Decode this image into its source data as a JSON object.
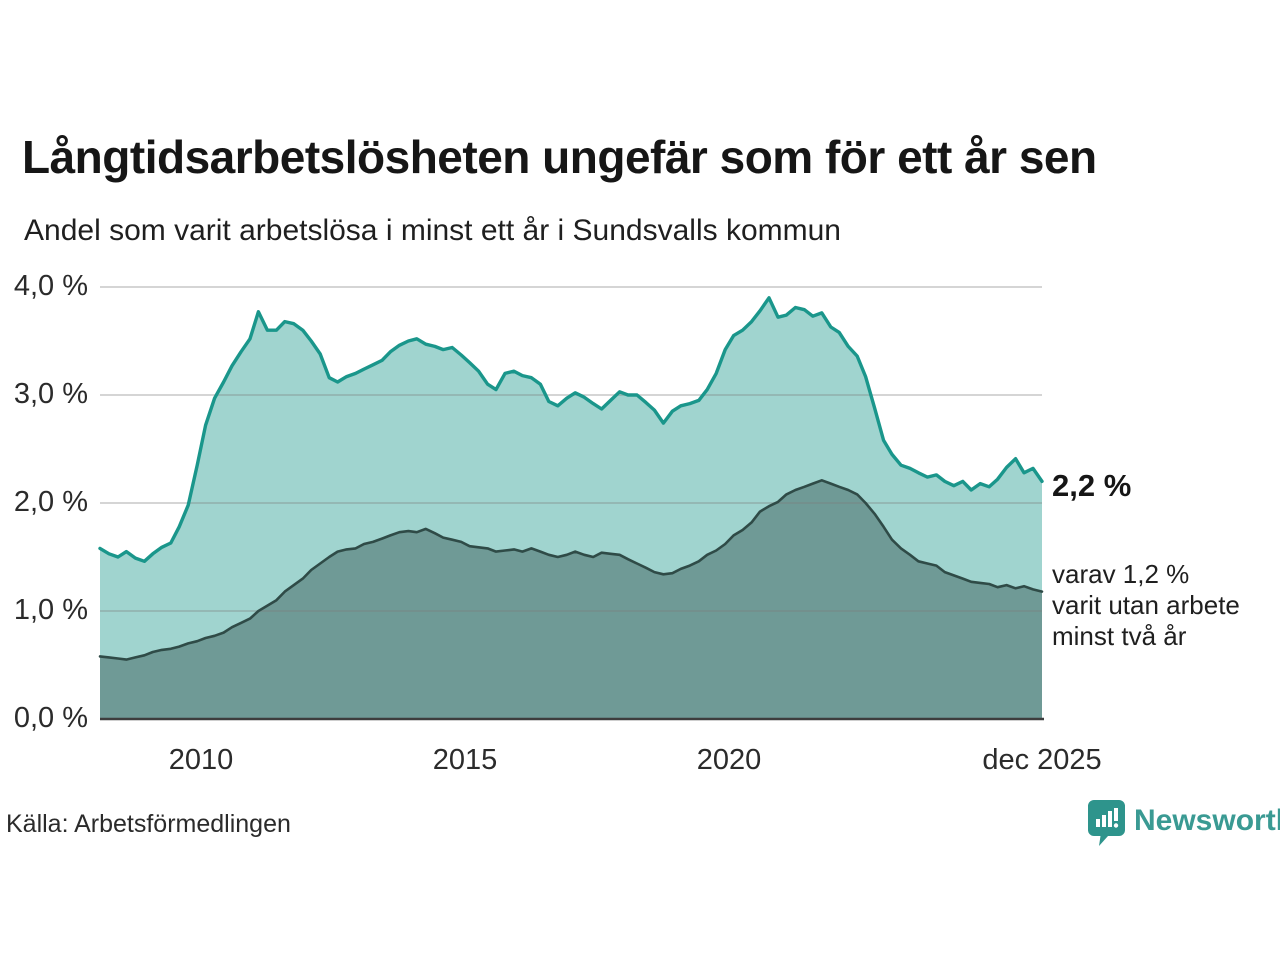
{
  "header": {
    "title": "Långtidsarbetslösheten ungefär som för ett år sen",
    "subtitle": "Andel som varit arbetslösa i minst ett år i Sundsvalls kommun"
  },
  "annotations": {
    "latest_total": "2,2 %",
    "secondary_lines": [
      "varav 1,2 %",
      "varit utan arbete",
      "minst två år"
    ]
  },
  "footer": {
    "source": "Källa: Arbetsförmedlingen",
    "brand": "Newsworthy"
  },
  "colors": {
    "line_total": "#1a968b",
    "fill_total": "#a0d4cf",
    "line_two_years": "#2f4b47",
    "fill_two_years": "#6f9a96",
    "gridline": "#d9d9d9",
    "axis_baseline": "#3d3d3d",
    "brand_teal": "#3a9a93",
    "icon_teal": "#2e948c"
  },
  "chart_data": {
    "type": "area",
    "title": "Långtidsarbetslösheten ungefär som för ett år sen",
    "subtitle": "Andel som varit arbetslösa i minst ett år i Sundsvalls kommun",
    "xlabel": "",
    "ylabel": "",
    "ylim": [
      0,
      4
    ],
    "grid": true,
    "legend_position": "right-annotations",
    "yticks": [
      {
        "value": 0,
        "label": "0,0 %"
      },
      {
        "value": 1,
        "label": "1,0 %"
      },
      {
        "value": 2,
        "label": "2,0 %"
      },
      {
        "value": 3,
        "label": "3,0 %"
      },
      {
        "value": 4,
        "label": "4,0 %"
      }
    ],
    "xticks": [
      {
        "t": 2010.0,
        "label": "2010"
      },
      {
        "t": 2015.0,
        "label": "2015"
      },
      {
        "t": 2020.0,
        "label": "2020"
      },
      {
        "t": 2025.92,
        "label": "dec 2025"
      }
    ],
    "x": [
      2008.08,
      2008.25,
      2008.42,
      2008.58,
      2008.75,
      2008.92,
      2009.08,
      2009.25,
      2009.42,
      2009.58,
      2009.75,
      2009.92,
      2010.08,
      2010.25,
      2010.42,
      2010.58,
      2010.75,
      2010.92,
      2011.08,
      2011.25,
      2011.42,
      2011.58,
      2011.75,
      2011.92,
      2012.08,
      2012.25,
      2012.42,
      2012.58,
      2012.75,
      2012.92,
      2013.08,
      2013.25,
      2013.42,
      2013.58,
      2013.75,
      2013.92,
      2014.08,
      2014.25,
      2014.42,
      2014.58,
      2014.75,
      2014.92,
      2015.08,
      2015.25,
      2015.42,
      2015.58,
      2015.75,
      2015.92,
      2016.08,
      2016.25,
      2016.42,
      2016.58,
      2016.75,
      2016.92,
      2017.08,
      2017.25,
      2017.42,
      2017.58,
      2017.75,
      2017.92,
      2018.08,
      2018.25,
      2018.42,
      2018.58,
      2018.75,
      2018.92,
      2019.08,
      2019.25,
      2019.42,
      2019.58,
      2019.75,
      2019.92,
      2020.08,
      2020.25,
      2020.42,
      2020.58,
      2020.75,
      2020.92,
      2021.08,
      2021.25,
      2021.42,
      2021.58,
      2021.75,
      2021.92,
      2022.08,
      2022.25,
      2022.42,
      2022.58,
      2022.75,
      2022.92,
      2023.08,
      2023.25,
      2023.42,
      2023.58,
      2023.75,
      2023.92,
      2024.08,
      2024.25,
      2024.42,
      2024.58,
      2024.75,
      2024.92,
      2025.08,
      2025.25,
      2025.42,
      2025.58,
      2025.75,
      2025.92
    ],
    "series": [
      {
        "name": "Andel arbetslösa minst ett år",
        "color": "#1a968b",
        "fill": "#a0d4cf",
        "latest_label": "2,2 %",
        "values": [
          1.58,
          1.53,
          1.5,
          1.55,
          1.49,
          1.46,
          1.53,
          1.59,
          1.63,
          1.78,
          1.98,
          2.35,
          2.72,
          2.97,
          3.12,
          3.27,
          3.4,
          3.52,
          3.77,
          3.6,
          3.6,
          3.68,
          3.66,
          3.6,
          3.5,
          3.38,
          3.16,
          3.12,
          3.17,
          3.2,
          3.24,
          3.28,
          3.32,
          3.4,
          3.46,
          3.5,
          3.52,
          3.47,
          3.45,
          3.42,
          3.44,
          3.37,
          3.3,
          3.22,
          3.1,
          3.05,
          3.2,
          3.22,
          3.18,
          3.16,
          3.1,
          2.94,
          2.9,
          2.97,
          3.02,
          2.98,
          2.92,
          2.87,
          2.95,
          3.03,
          3.0,
          3.0,
          2.93,
          2.86,
          2.74,
          2.85,
          2.9,
          2.92,
          2.95,
          3.05,
          3.2,
          3.42,
          3.55,
          3.6,
          3.68,
          3.78,
          3.9,
          3.72,
          3.74,
          3.81,
          3.79,
          3.73,
          3.76,
          3.63,
          3.58,
          3.45,
          3.36,
          3.17,
          2.88,
          2.58,
          2.45,
          2.35,
          2.32,
          2.28,
          2.24,
          2.26,
          2.2,
          2.16,
          2.2,
          2.12,
          2.18,
          2.15,
          2.22,
          2.33,
          2.41,
          2.28,
          2.32,
          2.2
        ]
      },
      {
        "name": "varav arbetslösa minst två år",
        "color": "#2f4b47",
        "fill": "#6f9a96",
        "latest_label": "1,2 %",
        "values": [
          0.58,
          0.57,
          0.56,
          0.55,
          0.57,
          0.59,
          0.62,
          0.64,
          0.65,
          0.67,
          0.7,
          0.72,
          0.75,
          0.77,
          0.8,
          0.85,
          0.89,
          0.93,
          1.0,
          1.05,
          1.1,
          1.18,
          1.24,
          1.3,
          1.38,
          1.44,
          1.5,
          1.55,
          1.57,
          1.58,
          1.62,
          1.64,
          1.67,
          1.7,
          1.73,
          1.74,
          1.73,
          1.76,
          1.72,
          1.68,
          1.66,
          1.64,
          1.6,
          1.59,
          1.58,
          1.55,
          1.56,
          1.57,
          1.55,
          1.58,
          1.55,
          1.52,
          1.5,
          1.52,
          1.55,
          1.52,
          1.5,
          1.54,
          1.53,
          1.52,
          1.48,
          1.44,
          1.4,
          1.36,
          1.34,
          1.35,
          1.39,
          1.42,
          1.46,
          1.52,
          1.56,
          1.62,
          1.7,
          1.75,
          1.82,
          1.92,
          1.97,
          2.01,
          2.08,
          2.12,
          2.15,
          2.18,
          2.21,
          2.18,
          2.15,
          2.12,
          2.08,
          2.0,
          1.9,
          1.78,
          1.66,
          1.58,
          1.52,
          1.46,
          1.44,
          1.42,
          1.36,
          1.33,
          1.3,
          1.27,
          1.26,
          1.25,
          1.22,
          1.24,
          1.21,
          1.23,
          1.2,
          1.18
        ]
      }
    ]
  }
}
